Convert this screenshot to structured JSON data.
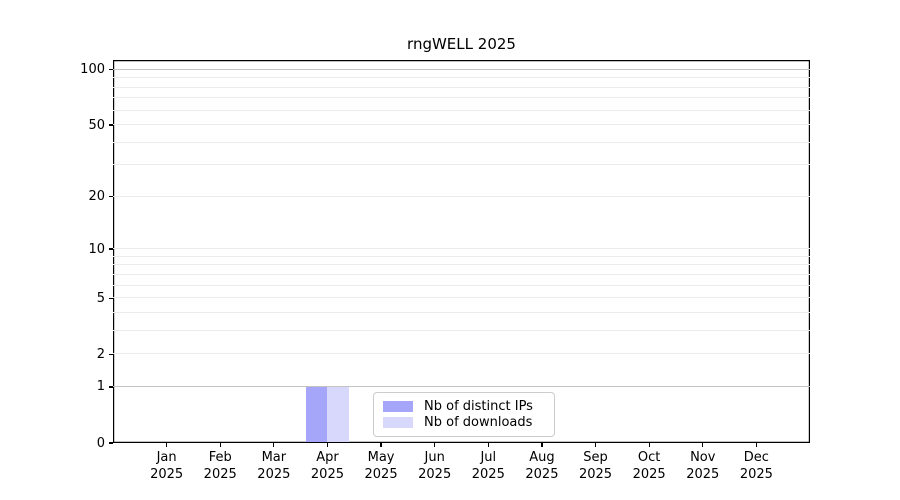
{
  "chart_data": {
    "type": "bar",
    "title": "rngWELL 2025",
    "categories": [
      "Jan 2025",
      "Feb 2025",
      "Mar 2025",
      "Apr 2025",
      "May 2025",
      "Jun 2025",
      "Jul 2025",
      "Aug 2025",
      "Sep 2025",
      "Oct 2025",
      "Nov 2025",
      "Dec 2025"
    ],
    "series": [
      {
        "name": "Nb of distinct IPs",
        "color": "#a5a5fa",
        "values": [
          0,
          0,
          0,
          1,
          0,
          0,
          0,
          0,
          0,
          0,
          0,
          0
        ]
      },
      {
        "name": "Nb of downloads",
        "color": "#d8d8fc",
        "values": [
          0,
          0,
          0,
          1,
          0,
          0,
          0,
          0,
          0,
          0,
          0,
          0
        ]
      }
    ],
    "xlabel": "",
    "ylabel": "",
    "y_scale": "log1p",
    "ylim": [
      0,
      113
    ],
    "y_tick_values": [
      0,
      1,
      2,
      5,
      10,
      20,
      50,
      100
    ],
    "y_tick_labels": [
      "0",
      "1",
      "2",
      "5",
      "10",
      "20",
      "50",
      "100"
    ],
    "y_grid_minor_values": [
      2,
      3,
      4,
      5,
      6,
      7,
      8,
      9,
      10,
      20,
      30,
      40,
      50,
      60,
      70,
      80,
      90
    ],
    "y_grid_emphasis_values": [
      1,
      100
    ],
    "grid": true,
    "legend_position": "lower center"
  },
  "colors": {
    "grid_minor": "#ebebeb",
    "grid_emphasis": "#c3c3c3",
    "axis": "#000000",
    "legend_border": "#cccccc",
    "background": "#ffffff"
  }
}
